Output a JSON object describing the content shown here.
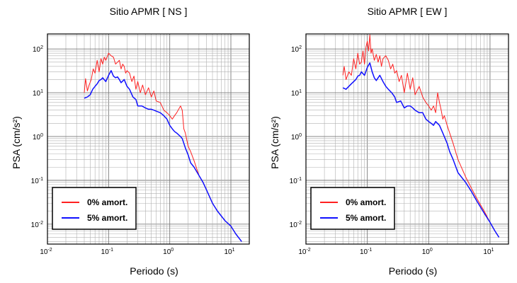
{
  "chart_data": [
    {
      "type": "line",
      "title": "Sitio APMR [ NS ]",
      "xlabel": "Periodo (s)",
      "ylabel": "PSA (cm/s²)",
      "xscale": "log",
      "yscale": "log",
      "xlim": [
        0.01,
        20
      ],
      "ylim": [
        0.0035,
        220
      ],
      "grid": true,
      "legend_placement": "bottom-left",
      "x_ticks": [
        {
          "base": "10",
          "exp": "-2"
        },
        {
          "base": "10",
          "exp": "-1"
        },
        {
          "base": "10",
          "exp": "0"
        },
        {
          "base": "10",
          "exp": "1"
        }
      ],
      "y_ticks": [
        {
          "base": "10",
          "exp": "-2"
        },
        {
          "base": "10",
          "exp": "-1"
        },
        {
          "base": "10",
          "exp": "0"
        },
        {
          "base": "10",
          "exp": "1"
        },
        {
          "base": "10",
          "exp": "2"
        }
      ],
      "series": [
        {
          "name": "0% amort.",
          "color": "#ff2020",
          "x": [
            0.04,
            0.042,
            0.045,
            0.048,
            0.052,
            0.056,
            0.06,
            0.065,
            0.07,
            0.075,
            0.08,
            0.085,
            0.09,
            0.1,
            0.11,
            0.12,
            0.13,
            0.14,
            0.15,
            0.16,
            0.17,
            0.18,
            0.19,
            0.2,
            0.22,
            0.24,
            0.26,
            0.28,
            0.3,
            0.33,
            0.36,
            0.4,
            0.45,
            0.5,
            0.55,
            0.6,
            0.7,
            0.8,
            0.9,
            1.0,
            1.1,
            1.2,
            1.3,
            1.5,
            1.6,
            1.7,
            1.8,
            2.0,
            2.2,
            2.5,
            3.0,
            3.5,
            4.0,
            5.0,
            6.0,
            8.0,
            10.0,
            12.0,
            15.0
          ],
          "y": [
            10,
            21,
            11,
            15,
            20,
            35,
            28,
            55,
            30,
            60,
            45,
            65,
            55,
            80,
            70,
            65,
            45,
            50,
            55,
            35,
            45,
            40,
            28,
            32,
            28,
            18,
            24,
            12,
            18,
            10,
            15,
            9,
            13,
            8,
            11,
            6.5,
            6,
            4,
            3.5,
            3,
            2.5,
            3,
            3.5,
            5,
            4,
            1.5,
            1.2,
            0.6,
            0.45,
            0.28,
            0.13,
            0.09,
            0.06,
            0.03,
            0.02,
            0.012,
            0.009,
            0.006,
            0.004
          ]
        },
        {
          "name": "5% amort.",
          "color": "#1010ff",
          "x": [
            0.04,
            0.045,
            0.05,
            0.055,
            0.06,
            0.065,
            0.07,
            0.075,
            0.08,
            0.09,
            0.1,
            0.11,
            0.12,
            0.13,
            0.14,
            0.15,
            0.16,
            0.18,
            0.2,
            0.22,
            0.25,
            0.28,
            0.3,
            0.35,
            0.4,
            0.45,
            0.5,
            0.55,
            0.6,
            0.7,
            0.8,
            0.9,
            1.0,
            1.1,
            1.2,
            1.3,
            1.5,
            1.6,
            1.7,
            1.8,
            2.0,
            2.2,
            2.5,
            3.0,
            3.5,
            4.0,
            5.0,
            6.0,
            8.0,
            10.0,
            12.0,
            15.0
          ],
          "y": [
            7.5,
            8,
            9,
            12,
            14,
            16,
            19,
            20,
            22,
            18,
            25,
            32,
            24,
            22,
            23,
            20,
            17,
            20,
            14,
            12,
            8,
            7,
            5,
            5,
            4.5,
            4.2,
            4.2,
            4.0,
            3.8,
            3.5,
            3.0,
            2.5,
            1.8,
            1.5,
            1.3,
            1.2,
            1.0,
            0.9,
            0.7,
            0.55,
            0.38,
            0.25,
            0.2,
            0.13,
            0.09,
            0.06,
            0.03,
            0.02,
            0.012,
            0.009,
            0.006,
            0.004
          ]
        }
      ]
    },
    {
      "type": "line",
      "title": "Sitio APMR [ EW ]",
      "xlabel": "Periodo (s)",
      "ylabel": "PSA (cm/s²)",
      "xscale": "log",
      "yscale": "log",
      "xlim": [
        0.01,
        20
      ],
      "ylim": [
        0.0035,
        220
      ],
      "grid": true,
      "legend_placement": "bottom-left",
      "x_ticks": [
        {
          "base": "10",
          "exp": "-2"
        },
        {
          "base": "10",
          "exp": "-1"
        },
        {
          "base": "10",
          "exp": "0"
        },
        {
          "base": "10",
          "exp": "1"
        }
      ],
      "y_ticks": [
        {
          "base": "10",
          "exp": "-2"
        },
        {
          "base": "10",
          "exp": "-1"
        },
        {
          "base": "10",
          "exp": "0"
        },
        {
          "base": "10",
          "exp": "1"
        },
        {
          "base": "10",
          "exp": "2"
        }
      ],
      "series": [
        {
          "name": "0% amort.",
          "color": "#ff2020",
          "x": [
            0.04,
            0.042,
            0.045,
            0.05,
            0.055,
            0.06,
            0.065,
            0.07,
            0.075,
            0.08,
            0.085,
            0.09,
            0.095,
            0.1,
            0.105,
            0.11,
            0.115,
            0.12,
            0.13,
            0.14,
            0.15,
            0.16,
            0.17,
            0.18,
            0.2,
            0.22,
            0.24,
            0.26,
            0.28,
            0.3,
            0.33,
            0.36,
            0.4,
            0.45,
            0.5,
            0.55,
            0.6,
            0.7,
            0.8,
            0.9,
            1.0,
            1.1,
            1.2,
            1.3,
            1.4,
            1.5,
            1.6,
            1.7,
            1.8,
            2.0,
            2.2,
            2.5,
            3.0,
            4.0,
            5.0,
            6.0,
            8.0,
            10.0,
            12.0,
            14.0
          ],
          "y": [
            25,
            40,
            20,
            30,
            25,
            60,
            35,
            80,
            45,
            50,
            90,
            45,
            110,
            150,
            90,
            210,
            80,
            100,
            55,
            75,
            50,
            70,
            40,
            60,
            70,
            55,
            35,
            45,
            28,
            32,
            18,
            25,
            10,
            28,
            12,
            22,
            9,
            14,
            8,
            6,
            5,
            4,
            5,
            3.5,
            10,
            6,
            4,
            2.5,
            3,
            1.8,
            1.2,
            0.7,
            0.3,
            0.12,
            0.065,
            0.04,
            0.02,
            0.011,
            0.007,
            0.005
          ]
        },
        {
          "name": "5% amort.",
          "color": "#1010ff",
          "x": [
            0.04,
            0.045,
            0.05,
            0.055,
            0.06,
            0.065,
            0.07,
            0.075,
            0.08,
            0.09,
            0.1,
            0.11,
            0.12,
            0.13,
            0.14,
            0.15,
            0.16,
            0.18,
            0.2,
            0.22,
            0.25,
            0.28,
            0.3,
            0.35,
            0.4,
            0.45,
            0.5,
            0.55,
            0.6,
            0.7,
            0.8,
            0.9,
            1.0,
            1.1,
            1.2,
            1.3,
            1.5,
            1.7,
            2.0,
            2.2,
            2.5,
            3.0,
            4.0,
            5.0,
            6.0,
            8.0,
            10.0,
            12.0,
            14.0
          ],
          "y": [
            13,
            12,
            14,
            16,
            18,
            20,
            24,
            25,
            30,
            25,
            38,
            48,
            30,
            22,
            19,
            22,
            25,
            18,
            14,
            12,
            10,
            8,
            6,
            6.5,
            4.5,
            5,
            5,
            4.5,
            4,
            3.5,
            3.5,
            2.5,
            2.2,
            2.0,
            1.8,
            2.2,
            1.8,
            1.2,
            0.7,
            0.45,
            0.3,
            0.15,
            0.09,
            0.055,
            0.035,
            0.018,
            0.011,
            0.007,
            0.005
          ]
        }
      ]
    }
  ]
}
